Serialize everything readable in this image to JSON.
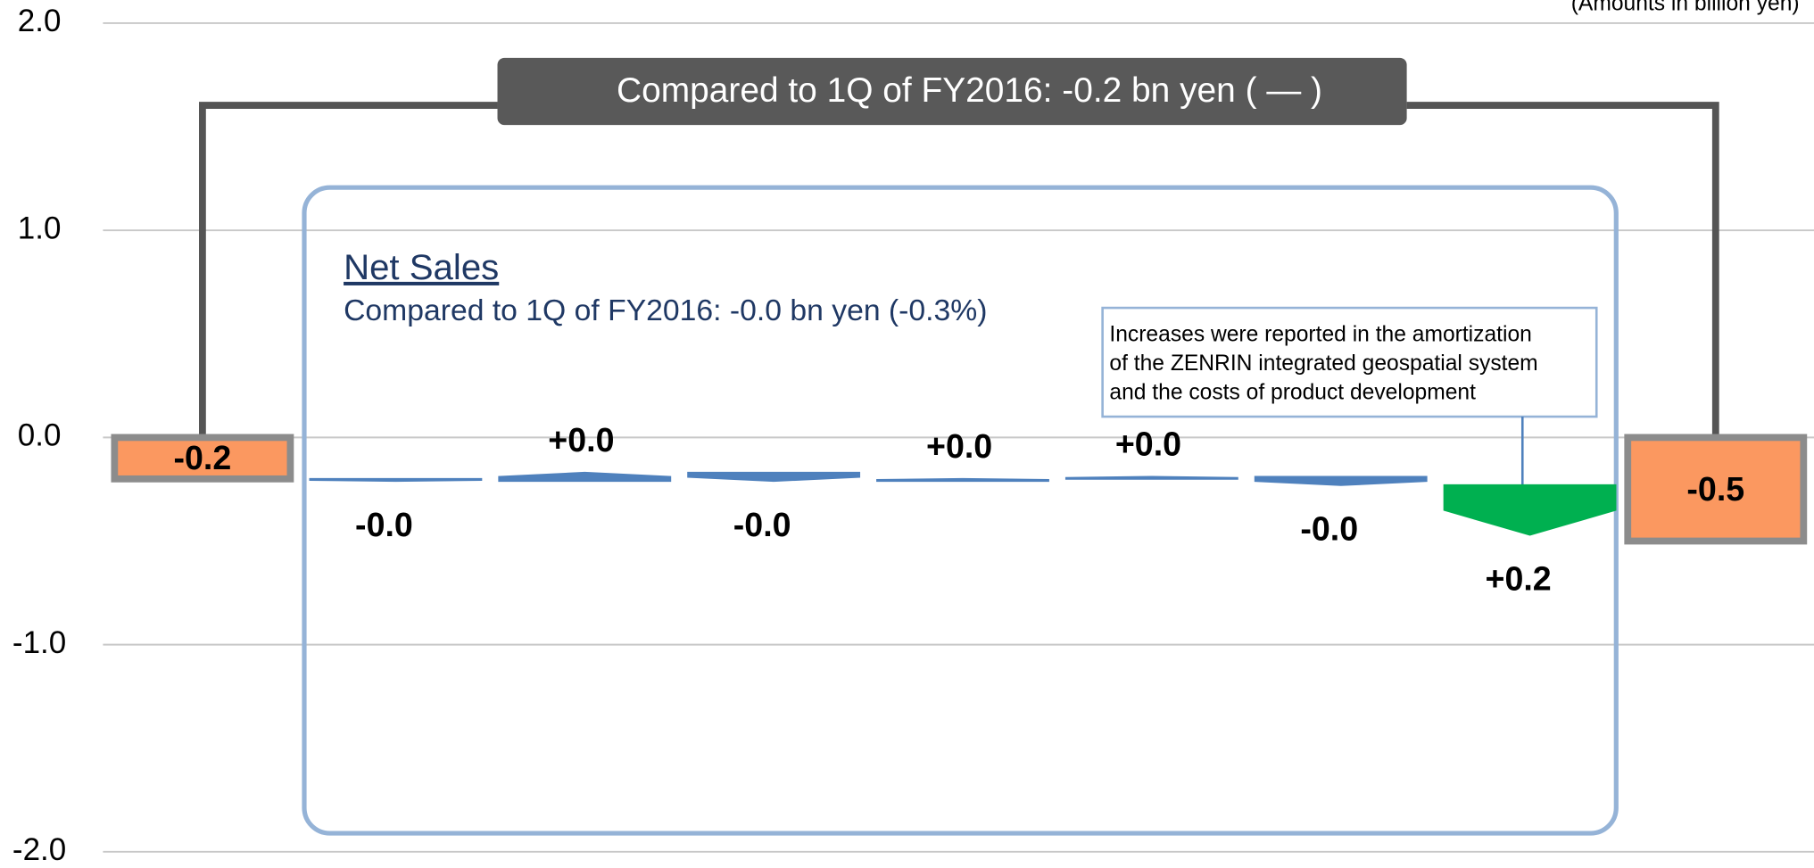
{
  "chart_data": {
    "type": "waterfall",
    "unit_note": "(Amounts in billion yen)",
    "title": "Compared to 1Q of FY2016: -0.2 bn yen ( — )",
    "panel_title": "Net Sales",
    "panel_subtitle": "Compared to 1Q of FY2016: -0.0 bn yen (-0.3%)",
    "annotation": [
      "Increases were reported in the amortization",
      "of the ZENRIN integrated geospatial system",
      "and the costs of product development"
    ],
    "start": {
      "value": -0.2,
      "color": "#fb9860"
    },
    "end": {
      "value": -0.5,
      "color": "#fb9860"
    },
    "values": [
      -0.01,
      0.04,
      -0.04,
      0.01,
      0.01,
      -0.04,
      0.24
    ],
    "value_labels": [
      "-0.0",
      "+0.0",
      "-0.0",
      "+0.0",
      "+0.0",
      "-0.0",
      "+0.2"
    ],
    "colors": [
      "#4f81bd",
      "#4f81bd",
      "#4f81bd",
      "#4f81bd",
      "#4f81bd",
      "#4f81bd",
      "#00b050"
    ],
    "inverted": [
      false,
      false,
      false,
      false,
      false,
      false,
      true
    ],
    "ylim": [
      -2,
      2
    ],
    "yticks": [
      {
        "value": 2,
        "label": "2.0"
      },
      {
        "value": 1,
        "label": "1.0"
      },
      {
        "value": 0,
        "label": "0.0"
      },
      {
        "value": -1,
        "label": "-1.0"
      },
      {
        "value": -2,
        "label": "-2.0"
      }
    ],
    "grid": true
  }
}
